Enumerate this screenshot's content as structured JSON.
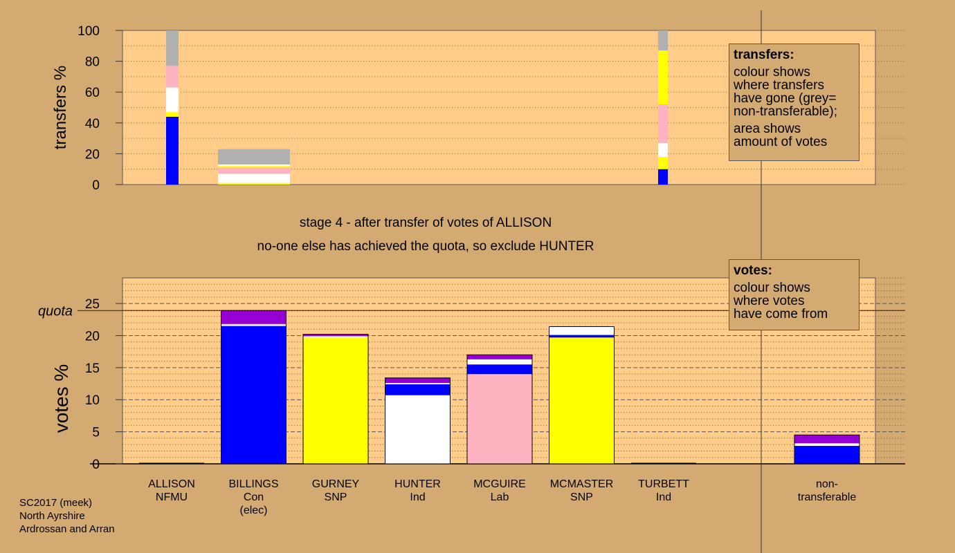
{
  "stage_lines": [
    "stage 4 - after transfer of votes of ALLISON",
    "no-one else has achieved the quota, so exclude HUNTER"
  ],
  "transfers_legend": {
    "title": "transfers:",
    "lines": [
      "colour shows",
      "where transfers",
      "have gone (grey=",
      "non-transferable);"
    ],
    "lines2": [
      "area shows",
      "amount of votes"
    ]
  },
  "votes_legend": {
    "title": "votes:",
    "lines": [
      "colour shows",
      "where votes",
      "have come from"
    ]
  },
  "footer": [
    "SC2017 (meek)",
    "North Ayrshire",
    "Ardrossan and Arran"
  ],
  "colors": {
    "background": "#d4aa73",
    "plot_area": "#ffcc8a",
    "Con": "#0000ff",
    "SNP": "#ffff00",
    "Ind": "#ffffff",
    "Lab": "#ffb3c1",
    "NFMU": "#9400d3",
    "non_transferable": "#b0b0b0"
  },
  "chart_data": [
    {
      "type": "bar",
      "stacked": true,
      "ylabel": "transfers %",
      "ylim": [
        0,
        100
      ],
      "yticks": [
        0,
        20,
        40,
        60,
        80,
        100
      ],
      "columns": [
        {
          "segments": [
            {
              "color": "Con",
              "from": 0,
              "to": 44
            },
            {
              "color": "SNP",
              "from": 44,
              "to": 47
            },
            {
              "color": "Ind",
              "from": 47,
              "to": 63
            },
            {
              "color": "Lab",
              "from": 63,
              "to": 77
            },
            {
              "color": "non_transferable",
              "from": 77,
              "to": 100
            }
          ]
        },
        {
          "segments": [
            {
              "color": "SNP",
              "from": 0,
              "to": 1
            },
            {
              "color": "Ind",
              "from": 1,
              "to": 7
            },
            {
              "color": "Lab",
              "from": 7,
              "to": 11
            },
            {
              "color": "SNP",
              "from": 11,
              "to": 12
            },
            {
              "color": "Ind",
              "from": 12,
              "to": 13
            },
            {
              "color": "non_transferable",
              "from": 13,
              "to": 23
            }
          ]
        },
        {
          "segments": [
            {
              "color": "Con",
              "from": 0,
              "to": 10
            },
            {
              "color": "SNP",
              "from": 10,
              "to": 18
            },
            {
              "color": "Ind",
              "from": 18,
              "to": 27
            },
            {
              "color": "Lab",
              "from": 27,
              "to": 52
            },
            {
              "color": "SNP",
              "from": 52,
              "to": 87
            },
            {
              "color": "non_transferable",
              "from": 87,
              "to": 100
            }
          ]
        }
      ]
    },
    {
      "type": "bar",
      "stacked": true,
      "ylabel": "votes %",
      "ylim": [
        0,
        29
      ],
      "yticks": [
        0,
        5,
        10,
        15,
        20,
        25
      ],
      "quota": 23.9,
      "quota_label": "quota",
      "candidates": [
        {
          "name": "ALLISON",
          "party": "NFMU",
          "extra": "",
          "segments": []
        },
        {
          "name": "BILLINGS",
          "party": "Con",
          "extra": "(elec)",
          "segments": [
            {
              "color": "Con",
              "value": 21.5
            },
            {
              "color": "Ind",
              "value": 0.3
            },
            {
              "color": "NFMU",
              "value": 2.1
            }
          ]
        },
        {
          "name": "GURNEY",
          "party": "SNP",
          "extra": "",
          "segments": [
            {
              "color": "SNP",
              "value": 19.7
            },
            {
              "color": "Ind",
              "value": 0.2
            },
            {
              "color": "NFMU",
              "value": 0.3
            }
          ]
        },
        {
          "name": "HUNTER",
          "party": "Ind",
          "extra": "",
          "segments": [
            {
              "color": "Ind",
              "value": 10.7
            },
            {
              "color": "Con",
              "value": 1.7
            },
            {
              "color": "Ind",
              "value": 0.2
            },
            {
              "color": "NFMU",
              "value": 0.8
            }
          ]
        },
        {
          "name": "MCGUIRE",
          "party": "Lab",
          "extra": "",
          "segments": [
            {
              "color": "Lab",
              "value": 14.0
            },
            {
              "color": "Con",
              "value": 1.5
            },
            {
              "color": "Ind",
              "value": 0.8
            },
            {
              "color": "NFMU",
              "value": 0.7
            }
          ]
        },
        {
          "name": "MCMASTER",
          "party": "SNP",
          "extra": "",
          "segments": [
            {
              "color": "SNP",
              "value": 19.7
            },
            {
              "color": "Con",
              "value": 0.4
            },
            {
              "color": "Ind",
              "value": 1.3
            }
          ]
        },
        {
          "name": "TURBETT",
          "party": "Ind",
          "extra": "",
          "segments": []
        },
        {
          "name": "non-",
          "party": "transferable",
          "extra": "",
          "segments": [
            {
              "color": "Con",
              "value": 2.8
            },
            {
              "color": "Ind",
              "value": 0.4
            },
            {
              "color": "NFMU",
              "value": 1.3
            }
          ]
        }
      ]
    }
  ]
}
